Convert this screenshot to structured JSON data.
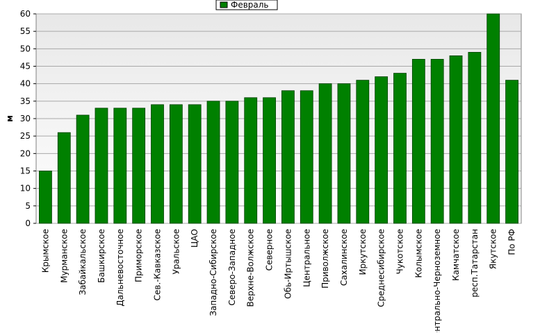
{
  "chart_data": {
    "type": "bar",
    "y_label": "м",
    "categories": [
      "Крымское",
      "Мурманское",
      "Забайкальское",
      "Башкирское",
      "Дальневосточное",
      "Приморское",
      "Сев.-Кавказское",
      "Уральское",
      "ЦАО",
      "Западно-Сибирское",
      "Северо-Западное",
      "Верхне-Волжское",
      "Северное",
      "Обь-Иртышское",
      "Центральное",
      "Приволжское",
      "Сахалинское",
      "Иркутское",
      "Среднесибирское",
      "Чукотское",
      "Колымское",
      "Центрально-Черноземное",
      "Камчатское",
      "респ.Татарстан",
      "Якутское",
      "По РФ"
    ],
    "series": [
      {
        "name": "Февраль",
        "color": "#008000",
        "values": [
          15,
          26,
          31,
          33,
          33,
          33,
          34,
          34,
          34,
          35,
          35,
          36,
          36,
          38,
          38,
          40,
          40,
          41,
          42,
          43,
          47,
          47,
          48,
          49,
          60,
          41
        ]
      }
    ],
    "ylim": [
      0,
      60
    ],
    "yticks": [
      0,
      5,
      10,
      15,
      20,
      25,
      30,
      35,
      40,
      45,
      50,
      55,
      60
    ],
    "grid": true
  }
}
